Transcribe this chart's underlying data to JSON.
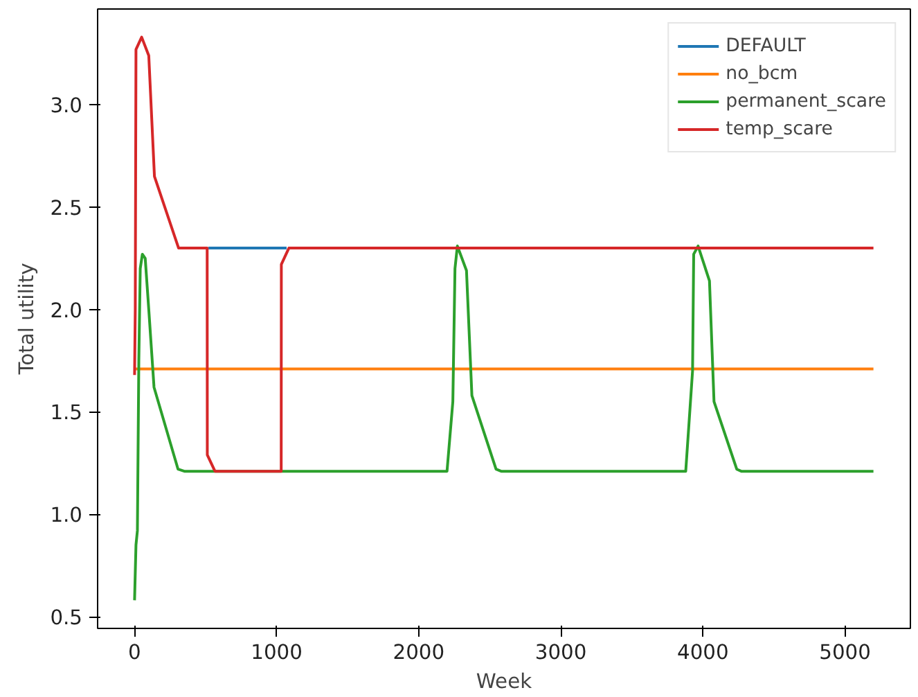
{
  "chart_data": {
    "type": "line",
    "xlabel": "Week",
    "ylabel": "Total utility",
    "xlim": [
      -260,
      5460
    ],
    "ylim": [
      0.4425,
      3.4675
    ],
    "xticks": [
      0,
      1000,
      2000,
      3000,
      4000,
      5000
    ],
    "yticks": [
      0.5,
      {
        "value": 1,
        "label": "1.0"
      },
      1.5,
      {
        "value": 2,
        "label": "2.0"
      },
      2.5,
      {
        "value": 3,
        "label": "3.0"
      }
    ],
    "grid": false,
    "legend": "top right",
    "line_style": "solid",
    "marker": "none",
    "series": [
      {
        "name": "DEFAULT",
        "color": "#1f77b4",
        "x": [
          520,
          1070
        ],
        "values": [
          2.3,
          2.3
        ]
      },
      {
        "name": "no_bcm",
        "color": "#ff7f0e",
        "x": [
          0,
          5200
        ],
        "values": [
          1.71,
          1.71
        ]
      },
      {
        "name": "permanent_scare",
        "color": "#2ca02c",
        "x": [
          0,
          10,
          20,
          30,
          40,
          55,
          75,
          100,
          137,
          306,
          350,
          2199,
          2240,
          2255,
          2272,
          2336,
          2374,
          2544,
          2580,
          3879,
          3927,
          3935,
          3966,
          4046,
          4078,
          4238,
          4270,
          5200
        ],
        "values": [
          0.58,
          0.85,
          0.92,
          1.75,
          2.2,
          2.27,
          2.25,
          2.0,
          1.62,
          1.22,
          1.21,
          1.21,
          1.55,
          2.2,
          2.31,
          2.19,
          1.58,
          1.22,
          1.21,
          1.21,
          1.7,
          2.27,
          2.31,
          2.14,
          1.55,
          1.22,
          1.21,
          1.21
        ]
      },
      {
        "name": "temp_scare",
        "color": "#d62728",
        "x": [
          0,
          5,
          10,
          50,
          100,
          140,
          310,
          511,
          512,
          566,
          1032,
          1033,
          1086,
          5200
        ],
        "values": [
          1.68,
          2.0,
          3.27,
          3.33,
          3.24,
          2.65,
          2.3,
          2.3,
          1.29,
          1.21,
          1.21,
          2.22,
          2.3,
          2.3
        ]
      }
    ]
  }
}
